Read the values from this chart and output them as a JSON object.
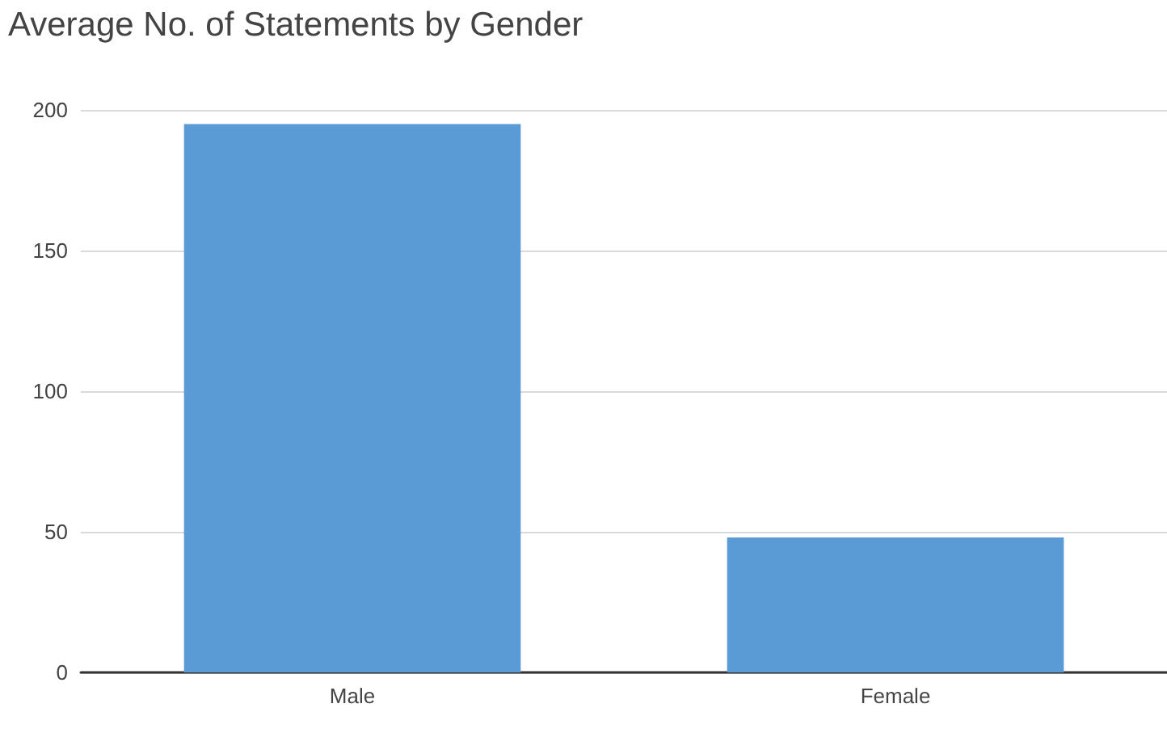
{
  "chart_data": {
    "type": "bar",
    "title": "Average No. of Statements by Gender",
    "categories": [
      "Male",
      "Female"
    ],
    "values": [
      195,
      48
    ],
    "color": "#5b9bd5",
    "ylim": [
      0,
      200
    ],
    "yticks": [
      0,
      50,
      100,
      150,
      200
    ],
    "grid": "y"
  }
}
